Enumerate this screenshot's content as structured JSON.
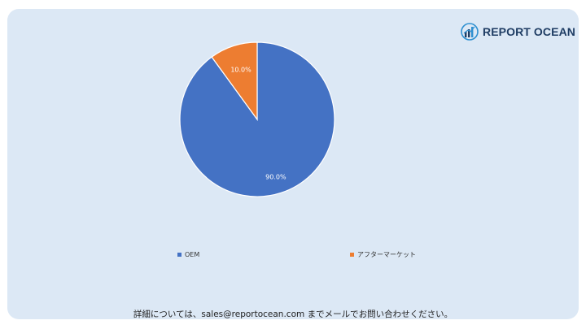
{
  "brand": {
    "name": "REPORT OCEAN"
  },
  "chart_data": {
    "type": "pie",
    "categories": [
      "OEM",
      "アフターマーケット"
    ],
    "values": [
      90.0,
      10.0
    ],
    "data_labels": [
      "90.0%",
      "10.0%"
    ],
    "colors": [
      "#4472c4",
      "#ed7d31"
    ],
    "legend_position": "bottom"
  },
  "legend": {
    "items": [
      {
        "label": "OEM"
      },
      {
        "label": "アフターマーケット"
      }
    ]
  },
  "footer": {
    "text": "詳細については、sales@reportocean.com までメールでお問い合わせください。"
  }
}
